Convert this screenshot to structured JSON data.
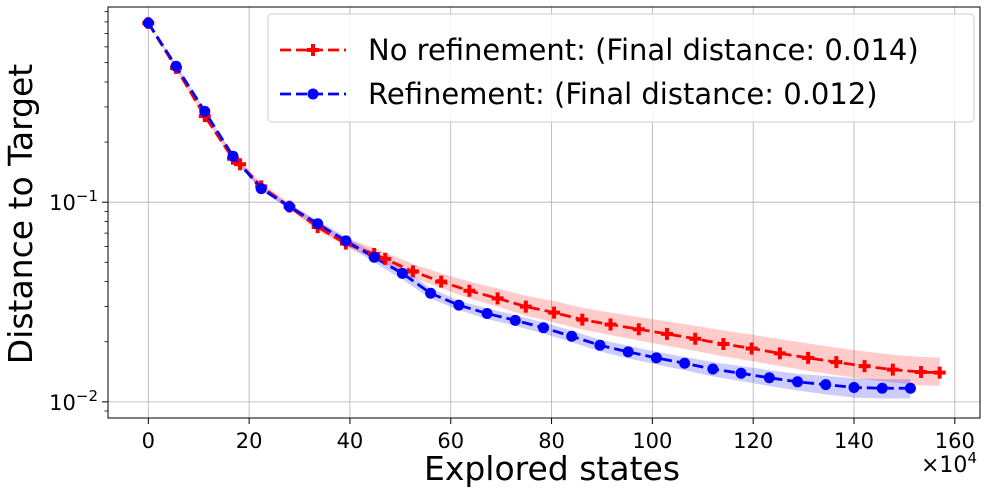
{
  "chart_data": {
    "type": "line",
    "title": "",
    "xlabel": "Explored states",
    "ylabel": "Distance to Target",
    "x_multiplier_label": "×10",
    "x_multiplier_exp": "4",
    "xlim": [
      -8,
      165
    ],
    "ylim": [
      0.0083,
      0.95
    ],
    "yscale": "log",
    "xticks": [
      0,
      20,
      40,
      60,
      80,
      100,
      120,
      140,
      160
    ],
    "xtick_labels": [
      "0",
      "20",
      "40",
      "60",
      "80",
      "100",
      "120",
      "140",
      "160"
    ],
    "yticks": [
      0.1,
      0.01
    ],
    "ytick_bases": [
      "10",
      "10"
    ],
    "ytick_exps": [
      "−1",
      "−2"
    ],
    "grid": true,
    "legend_position": "top-right",
    "series": [
      {
        "name": "No refinement: (Final distance: 0.014)",
        "color": "#ff0000",
        "marker": "plus",
        "x": [
          0,
          5.5,
          11.2,
          16.8,
          18.2,
          22.4,
          28,
          33.6,
          39.2,
          44.8,
          47,
          52.5,
          58.1,
          63.7,
          69.3,
          74.9,
          80.5,
          86.1,
          91.7,
          97.3,
          102.9,
          108.5,
          114.1,
          119.7,
          125.3,
          130.9,
          136.5,
          142.1,
          147.7,
          153.3,
          157
        ],
        "y": [
          0.79,
          0.47,
          0.27,
          0.165,
          0.155,
          0.12,
          0.095,
          0.075,
          0.062,
          0.055,
          0.052,
          0.045,
          0.04,
          0.036,
          0.033,
          0.03,
          0.028,
          0.0258,
          0.0244,
          0.0231,
          0.0219,
          0.0207,
          0.0195,
          0.0185,
          0.0175,
          0.0166,
          0.0158,
          0.0151,
          0.0145,
          0.0141,
          0.014
        ],
        "band_lower": [
          0.79,
          0.46,
          0.265,
          0.16,
          0.15,
          0.116,
          0.092,
          0.072,
          0.06,
          0.052,
          0.049,
          0.042,
          0.037,
          0.033,
          0.03,
          0.027,
          0.025,
          0.023,
          0.0216,
          0.0203,
          0.0191,
          0.018,
          0.0169,
          0.016,
          0.0151,
          0.0143,
          0.0136,
          0.013,
          0.0125,
          0.0121,
          0.012
        ],
        "band_upper": [
          0.79,
          0.48,
          0.275,
          0.172,
          0.162,
          0.125,
          0.099,
          0.079,
          0.066,
          0.059,
          0.056,
          0.049,
          0.044,
          0.04,
          0.037,
          0.034,
          0.032,
          0.0296,
          0.028,
          0.0266,
          0.0253,
          0.024,
          0.0228,
          0.0217,
          0.0206,
          0.0196,
          0.0187,
          0.0179,
          0.0172,
          0.0168,
          0.0167
        ]
      },
      {
        "name": "Refinement: (Final distance: 0.012)",
        "color": "#0000ff",
        "marker": "circle",
        "x": [
          0,
          5.5,
          11.2,
          16.8,
          22.4,
          28,
          33.6,
          39.2,
          44.8,
          50.4,
          56,
          61.6,
          67.2,
          72.8,
          78.4,
          84,
          89.6,
          95.2,
          100.8,
          106.4,
          112,
          117.6,
          123.2,
          128.8,
          134.4,
          140,
          145.6,
          151.2
        ],
        "y": [
          0.79,
          0.48,
          0.285,
          0.17,
          0.117,
          0.095,
          0.078,
          0.064,
          0.053,
          0.044,
          0.035,
          0.0305,
          0.0277,
          0.0256,
          0.0235,
          0.0213,
          0.0192,
          0.0178,
          0.0166,
          0.0156,
          0.0146,
          0.0139,
          0.0132,
          0.0126,
          0.0122,
          0.0118,
          0.0117,
          0.0117
        ],
        "band_lower": [
          0.79,
          0.47,
          0.28,
          0.167,
          0.114,
          0.092,
          0.075,
          0.061,
          0.05,
          0.041,
          0.033,
          0.0288,
          0.026,
          0.024,
          0.022,
          0.0199,
          0.0179,
          0.0165,
          0.0154,
          0.0144,
          0.0134,
          0.0127,
          0.012,
          0.0114,
          0.0109,
          0.0105,
          0.0104,
          0.0104
        ],
        "band_upper": [
          0.79,
          0.49,
          0.29,
          0.173,
          0.12,
          0.098,
          0.081,
          0.067,
          0.056,
          0.047,
          0.037,
          0.0322,
          0.0294,
          0.0272,
          0.025,
          0.0227,
          0.0205,
          0.0191,
          0.0178,
          0.0168,
          0.0158,
          0.0151,
          0.0144,
          0.0138,
          0.0135,
          0.0131,
          0.013,
          0.013
        ]
      }
    ]
  }
}
